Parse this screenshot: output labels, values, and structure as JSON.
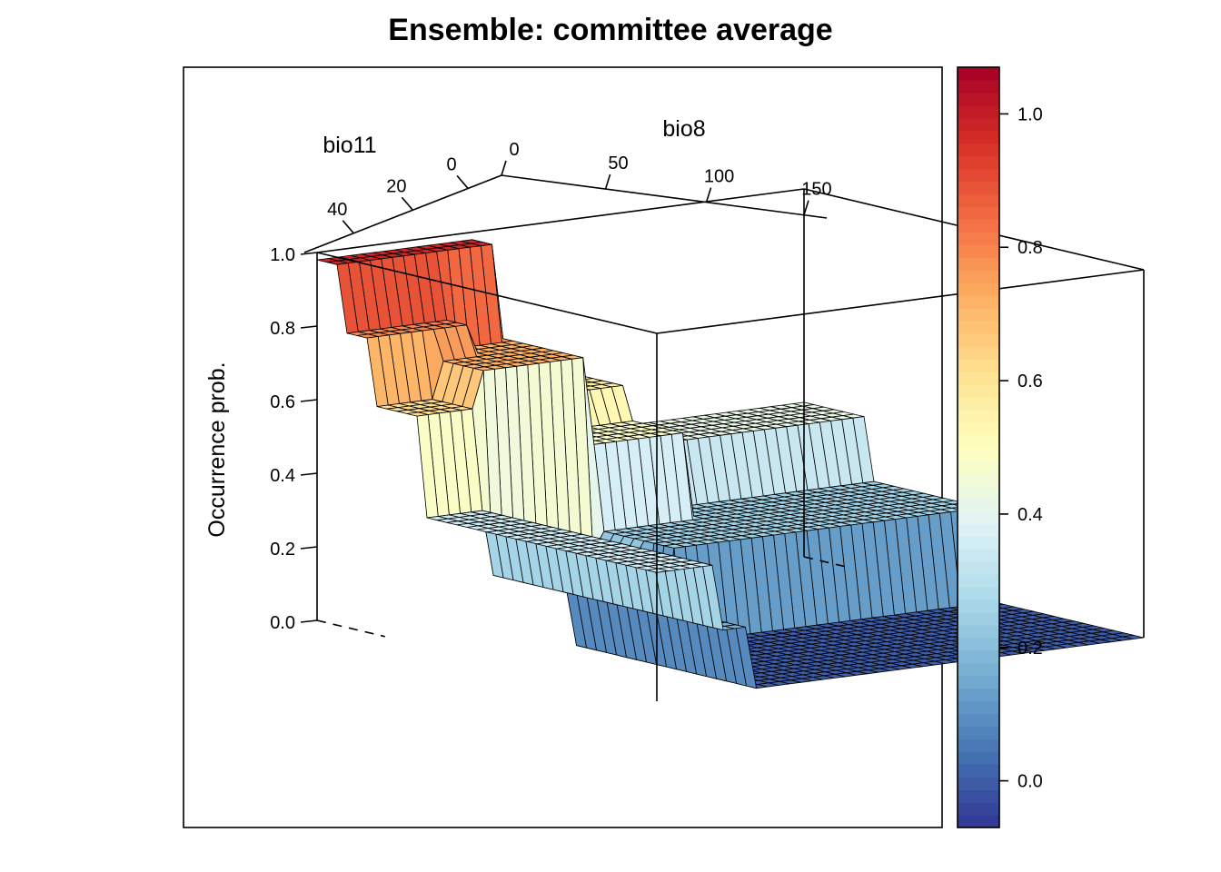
{
  "chart_data": {
    "type": "surface",
    "title": "Ensemble: committee average",
    "zlabel": "Occurrence prob.",
    "axes": {
      "bio11": {
        "label": "bio11",
        "ticks": [
          "40",
          "20",
          "0"
        ]
      },
      "bio8": {
        "label": "bio8",
        "ticks": [
          "0",
          "50",
          "100",
          "150"
        ]
      },
      "z": {
        "ticks": [
          "0.0",
          "0.2",
          "0.4",
          "0.6",
          "0.8",
          "1.0"
        ],
        "range": [
          0,
          1
        ]
      }
    },
    "colorbar": {
      "ticks": [
        "0.0",
        "0.2",
        "0.4",
        "0.6",
        "0.8",
        "1.0"
      ],
      "range": [
        -0.07,
        1.07
      ],
      "palette": [
        "#313695",
        "#4575b4",
        "#74add1",
        "#abd9e9",
        "#e0f3f8",
        "#ffffbf",
        "#fee090",
        "#fdae61",
        "#f46d43",
        "#d73027",
        "#a50026"
      ]
    },
    "surface_levels": {
      "description_levels": [
        0.0,
        0.17,
        0.2,
        0.37,
        0.42,
        0.48,
        0.57,
        0.62,
        0.72,
        0.8,
        0.95,
        0.98
      ],
      "front_floor": 0.0,
      "right_plateau": 0.25,
      "right_terrace": 0.42,
      "left_lower_terrace": 0.35,
      "left_upper_terrace": 0.62,
      "left_top_terrace": 0.8,
      "back_peak": 0.98
    }
  }
}
